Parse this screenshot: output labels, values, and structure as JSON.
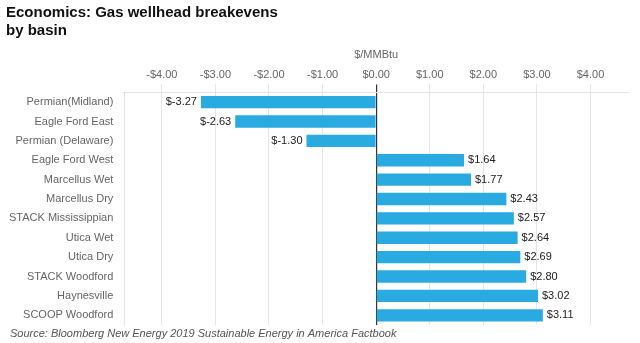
{
  "chart_data": {
    "type": "bar",
    "orientation": "horizontal",
    "title": "Economics: Gas wellhead breakevens",
    "subtitle": "by basin",
    "xlabel": "$/MMBtu",
    "annotations": [
      "Source: Bloomberg New Energy 2019 Sustainable Energy in America Factbook"
    ],
    "categories": [
      "SCOOP Woodford",
      "Haynesville",
      "STACK Woodford",
      "Utica Dry",
      "Utica Wet",
      "STACK Mississippian",
      "Marcellus Dry",
      "Marcellus Wet",
      "Eagle Ford West",
      "Permian (Delaware)",
      "Eagle Ford East",
      "Permian(Midland)"
    ],
    "values": [
      3.11,
      3.02,
      2.8,
      2.69,
      2.64,
      2.57,
      2.43,
      1.77,
      1.64,
      -1.3,
      -2.63,
      -3.27
    ],
    "value_labels": [
      "$3.11",
      "$3.02",
      "$2.80",
      "$2.69",
      "$2.64",
      "$2.57",
      "$2.43",
      "$1.77",
      "$1.64",
      "$-1.30",
      "$-2.63",
      "$-3.27"
    ],
    "data_labels": true,
    "color": "#29ABE2",
    "xlim": [
      -4.7,
      4.7
    ],
    "xticks": [
      {
        "value": -4.0,
        "label": "-$4.00"
      },
      {
        "value": -3.0,
        "label": "-$3.00"
      },
      {
        "value": -2.0,
        "label": "-$2.00"
      },
      {
        "value": -1.0,
        "label": "-$1.00"
      },
      {
        "value": 0.0,
        "label": "$0.00"
      },
      {
        "value": 1.0,
        "label": "$1.00"
      },
      {
        "value": 2.0,
        "label": "$2.00"
      },
      {
        "value": 3.0,
        "label": "$3.00"
      },
      {
        "value": 4.0,
        "label": "$4.00"
      }
    ],
    "grid": true
  }
}
